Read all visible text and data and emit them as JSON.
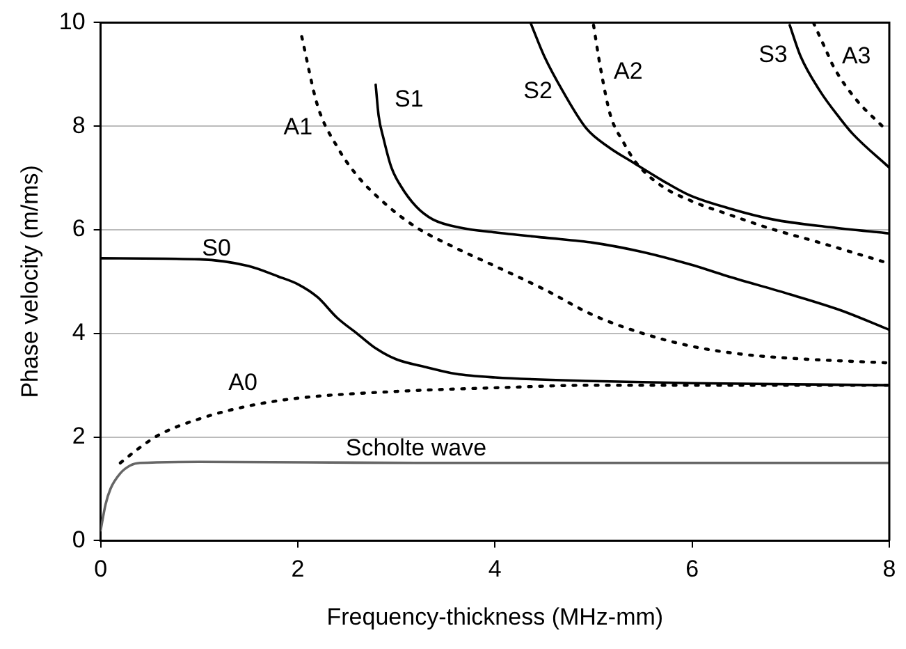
{
  "chart_data": {
    "type": "line",
    "xlabel": "Frequency-thickness (MHz-mm)",
    "ylabel": "Phase velocity (m/ms)",
    "xlim": [
      0,
      8
    ],
    "xticks": [
      0,
      2,
      4,
      6,
      8
    ],
    "ylim": [
      0,
      10
    ],
    "yticks": [
      0,
      2,
      4,
      6,
      8,
      10
    ],
    "grid": "y",
    "legend": false,
    "marker": "none",
    "series": [
      {
        "name": "Scholte wave",
        "color": "#666666",
        "line_style": "solid",
        "x": [
          0,
          0.05,
          0.1,
          0.2,
          0.3,
          0.4,
          1,
          3.2,
          8
        ],
        "values": [
          0.2,
          0.7,
          1.0,
          1.3,
          1.45,
          1.5,
          1.52,
          1.5,
          1.5
        ]
      },
      {
        "name": "A0",
        "color": "#000000",
        "line_style": "dotted",
        "x": [
          0.2,
          0.4,
          0.6,
          1,
          1.5,
          2,
          3,
          4,
          5,
          6,
          8
        ],
        "values": [
          1.5,
          1.8,
          2.05,
          2.35,
          2.6,
          2.75,
          2.88,
          2.95,
          3.0,
          3.0,
          3.0
        ]
      },
      {
        "name": "S0",
        "color": "#000000",
        "line_style": "solid",
        "x": [
          0,
          1,
          1.5,
          1.8,
          2,
          2.2,
          2.4,
          2.6,
          2.8,
          3,
          3.3,
          3.6,
          4,
          5,
          6,
          8
        ],
        "values": [
          5.45,
          5.43,
          5.3,
          5.1,
          4.95,
          4.7,
          4.3,
          4.0,
          3.7,
          3.5,
          3.35,
          3.22,
          3.15,
          3.08,
          3.04,
          3.0
        ]
      },
      {
        "name": "A1",
        "color": "#000000",
        "line_style": "dotted",
        "x": [
          2.04,
          2.2,
          2.4,
          2.6,
          2.9,
          3.2,
          3.6,
          4,
          4.5,
          5,
          5.5,
          6,
          6.5,
          7,
          8
        ],
        "values": [
          9.73,
          8.4,
          7.6,
          7.05,
          6.48,
          6.05,
          5.65,
          5.3,
          4.85,
          4.35,
          4.0,
          3.75,
          3.6,
          3.52,
          3.43
        ]
      },
      {
        "name": "S1",
        "color": "#000000",
        "line_style": "solid",
        "x": [
          2.79,
          2.82,
          2.87,
          2.95,
          3.04,
          3.2,
          3.37,
          3.65,
          4,
          4.5,
          5,
          5.5,
          6,
          6.35,
          7,
          7.5,
          8
        ],
        "values": [
          8.8,
          8.2,
          7.76,
          7.2,
          6.86,
          6.45,
          6.2,
          6.04,
          5.95,
          5.85,
          5.75,
          5.57,
          5.32,
          5.11,
          4.75,
          4.45,
          4.07
        ]
      },
      {
        "name": "S2",
        "color": "#000000",
        "line_style": "solid",
        "x": [
          4.36,
          4.5,
          4.69,
          4.93,
          5.15,
          5.4,
          5.7,
          5.97,
          6.4,
          6.82,
          7.4,
          8
        ],
        "values": [
          10,
          9.35,
          8.67,
          7.95,
          7.6,
          7.3,
          6.95,
          6.67,
          6.4,
          6.2,
          6.05,
          5.93
        ]
      },
      {
        "name": "A2",
        "color": "#000000",
        "line_style": "dotted",
        "x": [
          5.0,
          5.07,
          5.17,
          5.3,
          5.43,
          5.68,
          6,
          6.35,
          6.8,
          7.3,
          8
        ],
        "values": [
          9.95,
          9.13,
          8.22,
          7.7,
          7.3,
          6.86,
          6.55,
          6.31,
          6.02,
          5.75,
          5.35
        ]
      },
      {
        "name": "S3",
        "color": "#000000",
        "line_style": "solid",
        "x": [
          6.99,
          7.1,
          7.3,
          7.5,
          7.63,
          8
        ],
        "values": [
          9.95,
          9.35,
          8.67,
          8.15,
          7.85,
          7.2
        ]
      },
      {
        "name": "A3",
        "color": "#000000",
        "line_style": "dotted",
        "x": [
          7.23,
          7.35,
          7.44,
          7.67,
          7.94
        ],
        "values": [
          10,
          9.5,
          9.13,
          8.5,
          7.98
        ]
      }
    ]
  }
}
